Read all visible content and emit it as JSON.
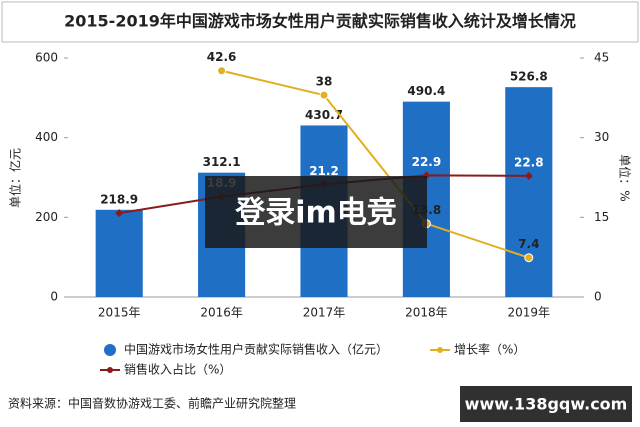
{
  "chart_data": {
    "type": "bar_line",
    "title": "2015-2019年中国游戏市场女性用户贡献实际销售收入统计及增长情况",
    "y_label": "单位：亿元",
    "y2_label": "单位：%",
    "categories": [
      "2015年",
      "2016年",
      "2017年",
      "2018年",
      "2019年"
    ],
    "ylim": [
      0,
      600
    ],
    "yticks": [
      0,
      200,
      400,
      600
    ],
    "y2lim": [
      0,
      45
    ],
    "y2ticks": [
      0,
      15,
      30,
      45
    ],
    "series": [
      {
        "name": "中国游戏市场女性用户贡献实际销售收入（亿元）",
        "type": "bar",
        "color": "#1f6fc5",
        "values": [
          218.9,
          312.1,
          430.7,
          490.4,
          526.8
        ]
      },
      {
        "name": "增长率（%）",
        "type": "line",
        "axis": "y2",
        "color": "#e0b020",
        "values": [
          null,
          42.6,
          38,
          13.8,
          7.4
        ]
      },
      {
        "name": "销售收入占比（%）",
        "type": "line",
        "axis": "y2",
        "color": "#8b1a1a",
        "values": [
          15.8,
          18.9,
          21.2,
          22.9,
          22.8
        ],
        "value_labels": [
          null,
          "18.9",
          "21.2",
          "22.9",
          "22.8"
        ]
      }
    ],
    "source": "资料来源：中国音数协游戏工委、前瞻产业研究院整理",
    "overlays": [
      "登录im电竞",
      "www.138gqw.com"
    ]
  }
}
